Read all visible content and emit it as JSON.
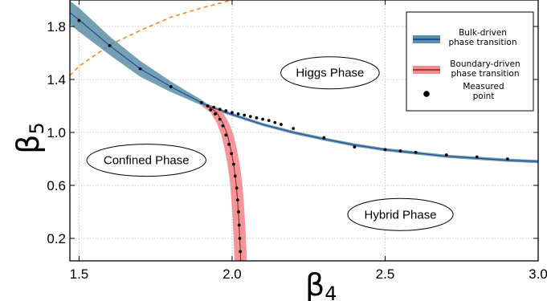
{
  "chart_data": {
    "type": "line",
    "title": "",
    "xlabel": "β",
    "xlabel_sub": "4",
    "ylabel": "β",
    "ylabel_sub": "5",
    "xlim": [
      1.47,
      3.0
    ],
    "ylim": [
      0.03,
      2.0
    ],
    "xticks": [
      1.5,
      2.0,
      2.5,
      3.0
    ],
    "xtick_labels": [
      "1.5",
      "2.0",
      "2.5",
      "3.0"
    ],
    "yticks": [
      0.2,
      0.6,
      1.0,
      1.4,
      1.8
    ],
    "ytick_labels": [
      "0.2",
      "0.6",
      "1.0",
      "1.4",
      "1.8"
    ],
    "grid": true,
    "legend_position": "top-right",
    "series": [
      {
        "name": "Bulk-driven phase transition",
        "role": "bulk-band",
        "color": "#1f4e9a",
        "band_color": "#5c8ea5",
        "x": [
          1.47,
          1.5,
          1.6,
          1.7,
          1.8,
          1.9,
          1.92,
          2.0,
          2.1,
          2.2,
          2.3,
          2.4,
          2.5,
          2.6,
          2.7,
          2.8,
          2.9,
          3.0
        ],
        "y": [
          1.905,
          1.85,
          1.655,
          1.48,
          1.345,
          1.225,
          1.2,
          1.135,
          1.06,
          1.0,
          0.95,
          0.905,
          0.87,
          0.845,
          0.82,
          0.805,
          0.79,
          0.78
        ],
        "half_width": [
          0.09,
          0.09,
          0.07,
          0.06,
          0.04,
          0.02,
          0.015,
          0.012,
          0.012,
          0.012,
          0.012,
          0.012,
          0.012,
          0.012,
          0.012,
          0.012,
          0.012,
          0.012
        ]
      },
      {
        "name": "Boundary-driven phase transition",
        "role": "boundary-band",
        "color": "#8b2020",
        "band_color": "#f48a8f",
        "x": [
          1.92,
          1.95,
          1.97,
          1.985,
          1.995,
          2.005,
          2.013,
          2.018,
          2.022,
          2.025,
          2.027,
          2.028
        ],
        "y": [
          1.2,
          1.15,
          1.07,
          0.98,
          0.88,
          0.76,
          0.62,
          0.48,
          0.34,
          0.2,
          0.1,
          0.03
        ],
        "band_half_width_x": 0.02
      },
      {
        "name": "Measured point",
        "role": "points",
        "color": "#000000",
        "x": [
          1.5,
          1.6,
          1.7,
          1.8,
          1.9,
          1.92,
          1.94,
          1.96,
          1.98,
          2.0,
          2.02,
          2.04,
          2.06,
          2.08,
          2.1,
          2.12,
          2.14,
          2.16,
          2.2,
          2.3,
          2.4,
          2.5,
          2.55,
          2.6,
          2.7,
          2.8,
          2.9,
          1.93,
          1.945,
          1.96,
          1.97,
          1.98,
          1.99,
          1.998,
          2.005,
          2.01,
          2.015,
          2.018,
          2.021,
          2.023,
          2.025,
          2.027
        ],
        "y": [
          1.845,
          1.655,
          1.48,
          1.345,
          1.225,
          1.2,
          1.19,
          1.175,
          1.163,
          1.15,
          1.14,
          1.13,
          1.12,
          1.11,
          1.1,
          1.09,
          1.075,
          1.06,
          1.03,
          0.96,
          0.89,
          0.87,
          0.86,
          0.85,
          0.83,
          0.815,
          0.8,
          1.17,
          1.14,
          1.1,
          1.05,
          0.98,
          0.91,
          0.84,
          0.76,
          0.67,
          0.58,
          0.49,
          0.4,
          0.3,
          0.2,
          0.1
        ]
      },
      {
        "name": "",
        "role": "dashed-line",
        "color": "#ff7f0e",
        "x": [
          1.47,
          1.5,
          1.6,
          1.7,
          1.8,
          1.9,
          2.0
        ],
        "y": [
          1.43,
          1.5,
          1.66,
          1.77,
          1.87,
          1.94,
          2.0
        ]
      }
    ],
    "annotations": [
      {
        "text": "Higgs Phase",
        "x": 2.32,
        "y": 1.45
      },
      {
        "text": "Confined Phase",
        "x": 1.72,
        "y": 0.79
      },
      {
        "text": "Hybrid Phase",
        "x": 2.55,
        "y": 0.38
      }
    ],
    "legend": [
      {
        "label": "Bulk-driven phase transition",
        "line1": "Bulk-driven",
        "line2": "phase transition",
        "kind": "band-blue"
      },
      {
        "label": "Boundary-driven phase transition",
        "line1": "Boundary-driven",
        "line2": "phase transition",
        "kind": "band-red"
      },
      {
        "label": "Measured point",
        "line1": "Measured",
        "line2": "point",
        "kind": "dot"
      }
    ]
  }
}
